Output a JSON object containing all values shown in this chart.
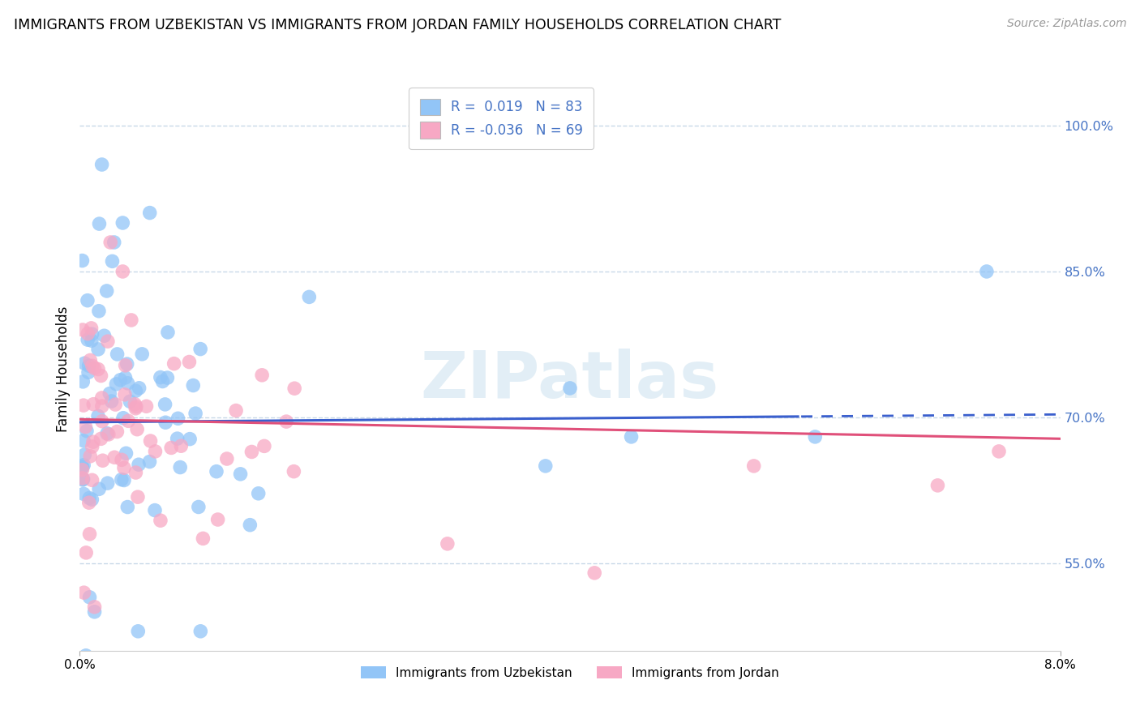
{
  "title": "IMMIGRANTS FROM UZBEKISTAN VS IMMIGRANTS FROM JORDAN FAMILY HOUSEHOLDS CORRELATION CHART",
  "source": "Source: ZipAtlas.com",
  "ylabel": "Family Households",
  "xlim": [
    0.0,
    8.0
  ],
  "ylim": [
    46.0,
    104.0
  ],
  "yticks": [
    55.0,
    70.0,
    85.0,
    100.0
  ],
  "ytick_labels": [
    "55.0%",
    "70.0%",
    "85.0%",
    "100.0%"
  ],
  "series1_label": "Immigrants from Uzbekistan",
  "series2_label": "Immigrants from Jordan",
  "series1_color": "#92c5f7",
  "series2_color": "#f7a8c4",
  "series1_R": 0.019,
  "series1_N": 83,
  "series2_R": -0.036,
  "series2_N": 69,
  "trend1_color": "#3a5fcd",
  "trend2_color": "#e0507a",
  "background_color": "#ffffff",
  "grid_color": "#c8d8e8",
  "watermark": "ZIPatlas",
  "trend1_y0": 69.5,
  "trend1_y1": 70.3,
  "trend2_y0": 69.8,
  "trend2_y1": 67.8
}
